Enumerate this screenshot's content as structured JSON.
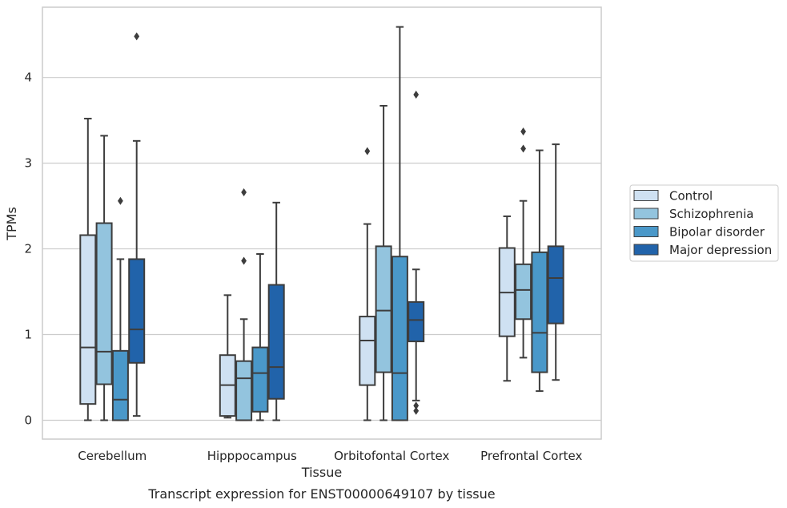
{
  "chart_data": {
    "type": "box",
    "xlabel": "Tissue",
    "ylabel": "TPMs",
    "caption": "Transcript expression for ENST00000649107 by tissue",
    "ylim": [
      -0.22,
      4.82
    ],
    "yticks": [
      0,
      1,
      2,
      3,
      4
    ],
    "grid": "horizontal",
    "legend_position": "right",
    "categories": [
      "Cerebellum",
      "Hipppocampus",
      "Orbitofontal Cortex",
      "Prefrontal Cortex"
    ],
    "series": [
      {
        "name": "Control",
        "color": "#cfe1f2",
        "boxes": [
          {
            "whislo": 0.0,
            "q1": 0.19,
            "med": 0.85,
            "q3": 2.16,
            "whishi": 3.52,
            "fliers": []
          },
          {
            "whislo": 0.03,
            "q1": 0.05,
            "med": 0.41,
            "q3": 0.76,
            "whishi": 1.46,
            "fliers": []
          },
          {
            "whislo": 0.0,
            "q1": 0.41,
            "med": 0.93,
            "q3": 1.21,
            "whishi": 2.29,
            "fliers": [
              3.14
            ]
          },
          {
            "whislo": 0.46,
            "q1": 0.98,
            "med": 1.49,
            "q3": 2.01,
            "whishi": 2.38,
            "fliers": []
          }
        ]
      },
      {
        "name": "Schizophrenia",
        "color": "#93c4de",
        "boxes": [
          {
            "whislo": 0.0,
            "q1": 0.42,
            "med": 0.8,
            "q3": 2.3,
            "whishi": 3.32,
            "fliers": []
          },
          {
            "whislo": 0.0,
            "q1": 0.0,
            "med": 0.49,
            "q3": 0.69,
            "whishi": 1.18,
            "fliers": [
              1.86,
              2.66
            ]
          },
          {
            "whislo": 0.0,
            "q1": 0.56,
            "med": 1.28,
            "q3": 2.03,
            "whishi": 3.67,
            "fliers": []
          },
          {
            "whislo": 0.73,
            "q1": 1.18,
            "med": 1.52,
            "q3": 1.82,
            "whishi": 2.56,
            "fliers": [
              3.17,
              3.37
            ]
          }
        ]
      },
      {
        "name": "Bipolar disorder",
        "color": "#4a98c9",
        "boxes": [
          {
            "whislo": 0.0,
            "q1": 0.0,
            "med": 0.24,
            "q3": 0.81,
            "whishi": 1.88,
            "fliers": [
              2.56
            ]
          },
          {
            "whislo": 0.0,
            "q1": 0.1,
            "med": 0.55,
            "q3": 0.85,
            "whishi": 1.94,
            "fliers": []
          },
          {
            "whislo": 0.0,
            "q1": 0.0,
            "med": 0.55,
            "q3": 1.91,
            "whishi": 4.59,
            "fliers": []
          },
          {
            "whislo": 0.34,
            "q1": 0.56,
            "med": 1.02,
            "q3": 1.96,
            "whishi": 3.15,
            "fliers": []
          }
        ]
      },
      {
        "name": "Major depression",
        "color": "#2163aa",
        "boxes": [
          {
            "whislo": 0.05,
            "q1": 0.67,
            "med": 1.06,
            "q3": 1.88,
            "whishi": 3.26,
            "fliers": [
              4.48
            ]
          },
          {
            "whislo": 0.0,
            "q1": 0.25,
            "med": 0.62,
            "q3": 1.58,
            "whishi": 2.54,
            "fliers": []
          },
          {
            "whislo": 0.23,
            "q1": 0.92,
            "med": 1.17,
            "q3": 1.38,
            "whishi": 1.76,
            "fliers": [
              0.11,
              0.17,
              3.8
            ]
          },
          {
            "whislo": 0.47,
            "q1": 1.13,
            "med": 1.66,
            "q3": 2.03,
            "whishi": 3.22,
            "fliers": []
          }
        ]
      }
    ]
  }
}
